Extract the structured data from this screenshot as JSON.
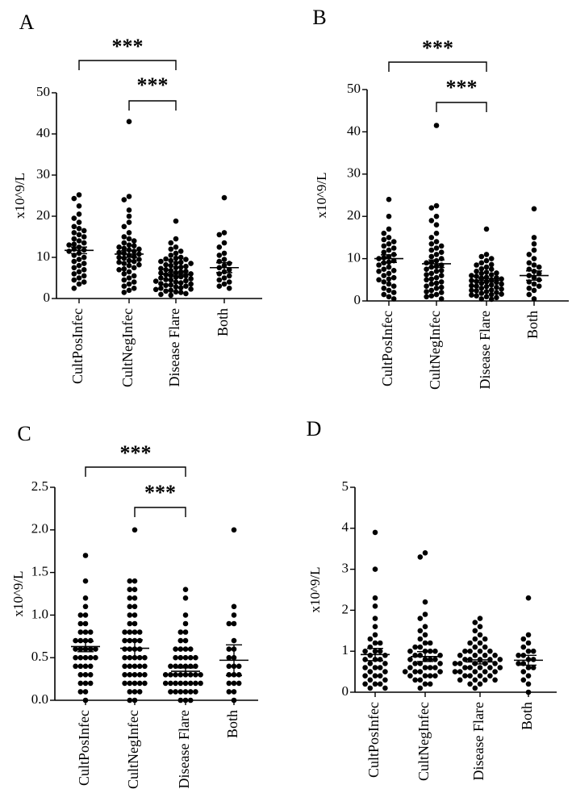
{
  "chart_data": [
    {
      "panel": "A",
      "type": "scatter",
      "ylabel": "x10^9/L",
      "ylim": [
        0,
        50
      ],
      "yticks": [
        0,
        10,
        20,
        30,
        40,
        50
      ],
      "categories": [
        "CultPosInfec",
        "CultNegInfec",
        "Disease Flare",
        "Both"
      ],
      "points": [
        [
          25.2,
          24.3,
          22.5,
          20.5,
          19.5,
          18.5,
          17.5,
          17.0,
          16.5,
          16.0,
          15.5,
          15.0,
          14.5,
          14.0,
          13.5,
          13.2,
          13.0,
          12.5,
          12.0,
          11.8,
          11.5,
          11.0,
          10.5,
          10.0,
          9.5,
          9.0,
          8.5,
          8.0,
          7.5,
          7.0,
          6.5,
          6.0,
          5.5,
          5.0,
          4.5,
          4.0,
          3.5,
          2.5
        ],
        [
          43.0,
          24.8,
          24.0,
          21.5,
          20.0,
          18.5,
          17.5,
          16.0,
          15.0,
          14.5,
          14.0,
          13.5,
          13.0,
          12.8,
          12.5,
          12.2,
          12.0,
          11.8,
          11.5,
          11.2,
          11.0,
          10.8,
          10.5,
          10.2,
          10.0,
          9.8,
          9.5,
          9.2,
          9.0,
          8.8,
          8.5,
          8.2,
          8.0,
          7.5,
          7.2,
          7.0,
          6.5,
          6.0,
          5.5,
          5.0,
          4.5,
          4.0,
          3.5,
          3.0,
          2.5,
          2.0,
          1.5
        ],
        [
          18.8,
          14.5,
          13.5,
          12.5,
          12.0,
          11.5,
          11.0,
          10.5,
          10.0,
          9.8,
          9.5,
          9.2,
          9.0,
          8.8,
          8.5,
          8.2,
          8.0,
          7.8,
          7.5,
          7.3,
          7.0,
          6.8,
          6.5,
          6.3,
          6.0,
          5.8,
          5.5,
          5.3,
          5.0,
          4.8,
          4.5,
          4.3,
          4.0,
          3.8,
          3.5,
          3.3,
          3.0,
          2.8,
          2.5,
          2.3,
          2.0,
          1.8,
          1.5,
          1.2,
          1.0,
          0.8,
          6.2,
          5.6,
          4.6,
          3.6,
          2.6,
          7.6,
          8.6,
          9.6,
          6.6,
          5.2,
          4.2,
          3.2,
          2.2,
          1.6
        ],
        [
          24.5,
          16.0,
          15.5,
          13.5,
          12.5,
          11.0,
          10.5,
          9.5,
          9.0,
          8.5,
          8.0,
          7.5,
          7.0,
          6.5,
          6.0,
          5.5,
          5.0,
          4.5,
          4.0,
          3.5,
          3.0,
          2.5
        ]
      ],
      "mean": [
        11.7,
        10.8,
        5.9,
        7.5
      ],
      "sem": [
        0.8,
        0.8,
        0.4,
        1.2
      ],
      "significance": [
        {
          "from": 0,
          "to": 2,
          "label": "***"
        },
        {
          "from": 1,
          "to": 2,
          "label": "***"
        }
      ]
    },
    {
      "panel": "B",
      "type": "scatter",
      "ylabel": "x10^9/L",
      "ylim": [
        0,
        50
      ],
      "yticks": [
        0,
        10,
        20,
        30,
        40,
        50
      ],
      "categories": [
        "CultPosInfec",
        "CultNegInfec",
        "Disease Flare",
        "Both"
      ],
      "points": [
        [
          24.0,
          20.0,
          17.0,
          16.0,
          15.0,
          14.5,
          14.0,
          13.5,
          13.0,
          12.5,
          12.0,
          11.5,
          11.0,
          10.5,
          10.0,
          9.5,
          9.0,
          8.5,
          8.0,
          7.5,
          7.0,
          6.5,
          6.0,
          5.5,
          5.0,
          4.5,
          4.0,
          3.5,
          3.0,
          2.5,
          2.0,
          1.5,
          1.0,
          0.5,
          10.2,
          9.2,
          7.2,
          5.2
        ],
        [
          41.5,
          22.5,
          22.0,
          20.0,
          19.0,
          18.0,
          16.0,
          15.0,
          14.0,
          13.5,
          13.0,
          12.5,
          12.0,
          11.5,
          11.0,
          10.5,
          10.0,
          9.5,
          9.0,
          8.5,
          8.0,
          7.5,
          7.0,
          6.5,
          6.0,
          5.5,
          5.0,
          4.5,
          4.0,
          3.5,
          3.0,
          2.5,
          2.0,
          1.5,
          1.0,
          0.5,
          9.2,
          8.2,
          7.2,
          6.2,
          5.2,
          4.2,
          3.2,
          2.2,
          1.2
        ],
        [
          17.0,
          11.0,
          10.5,
          10.0,
          9.5,
          9.0,
          8.5,
          8.0,
          7.5,
          7.0,
          6.8,
          6.5,
          6.2,
          6.0,
          5.8,
          5.5,
          5.2,
          5.0,
          4.8,
          4.5,
          4.2,
          4.0,
          3.8,
          3.5,
          3.2,
          3.0,
          2.8,
          2.5,
          2.2,
          2.0,
          1.8,
          1.5,
          1.2,
          1.0,
          0.8,
          0.5,
          6.6,
          5.6,
          4.6,
          3.6,
          2.6,
          1.6,
          7.6,
          8.6,
          5.4,
          4.4,
          3.4,
          2.4,
          1.4,
          0.4
        ],
        [
          21.8,
          15.0,
          13.5,
          12.0,
          11.0,
          10.0,
          9.0,
          8.5,
          8.0,
          7.5,
          7.0,
          6.5,
          6.0,
          5.5,
          5.0,
          4.5,
          4.0,
          3.5,
          3.0,
          2.5,
          1.5,
          0.5
        ]
      ],
      "mean": [
        10.0,
        8.8,
        4.9,
        6.0
      ],
      "sem": [
        0.9,
        0.9,
        0.4,
        1.1
      ],
      "significance": [
        {
          "from": 0,
          "to": 2,
          "label": "***"
        },
        {
          "from": 1,
          "to": 2,
          "label": "***"
        }
      ]
    },
    {
      "panel": "C",
      "type": "scatter",
      "ylabel": "x10^9/L",
      "ylim": [
        0,
        2.5
      ],
      "yticks": [
        "0.0",
        "0.5",
        "1.0",
        "1.5",
        "2.0",
        "2.5"
      ],
      "categories": [
        "CultPosInfec",
        "CultNegInfec",
        "Disease Flare",
        "Both"
      ],
      "points": [
        [
          1.7,
          1.4,
          1.2,
          1.1,
          1.0,
          1.0,
          0.9,
          0.9,
          0.8,
          0.8,
          0.8,
          0.7,
          0.7,
          0.7,
          0.6,
          0.6,
          0.6,
          0.6,
          0.5,
          0.5,
          0.5,
          0.5,
          0.4,
          0.4,
          0.4,
          0.4,
          0.3,
          0.3,
          0.3,
          0.2,
          0.2,
          0.2,
          0.1,
          0.1,
          0.0,
          0.6,
          0.7,
          0.5
        ],
        [
          2.0,
          1.4,
          1.4,
          1.3,
          1.3,
          1.2,
          1.2,
          1.1,
          1.1,
          1.0,
          1.0,
          0.9,
          0.9,
          0.8,
          0.8,
          0.8,
          0.7,
          0.7,
          0.7,
          0.6,
          0.6,
          0.6,
          0.5,
          0.5,
          0.5,
          0.5,
          0.4,
          0.4,
          0.4,
          0.4,
          0.3,
          0.3,
          0.3,
          0.3,
          0.2,
          0.2,
          0.2,
          0.2,
          0.1,
          0.1,
          0.1,
          0.0,
          0.0,
          0.6,
          0.5,
          0.4,
          0.3,
          0.2,
          0.7,
          0.8
        ],
        [
          1.3,
          1.2,
          1.0,
          0.9,
          0.8,
          0.8,
          0.7,
          0.7,
          0.6,
          0.6,
          0.6,
          0.5,
          0.5,
          0.5,
          0.5,
          0.4,
          0.4,
          0.4,
          0.4,
          0.4,
          0.3,
          0.3,
          0.3,
          0.3,
          0.3,
          0.3,
          0.2,
          0.2,
          0.2,
          0.2,
          0.2,
          0.2,
          0.1,
          0.1,
          0.1,
          0.1,
          0.1,
          0.0,
          0.0,
          0.0,
          0.3,
          0.2,
          0.4,
          0.2,
          0.3,
          0.1,
          0.5,
          0.6
        ],
        [
          2.0,
          1.1,
          1.0,
          0.9,
          0.9,
          0.7,
          0.6,
          0.5,
          0.5,
          0.4,
          0.4,
          0.3,
          0.3,
          0.3,
          0.2,
          0.2,
          0.2,
          0.1,
          0.1,
          0.0,
          0.6,
          0.4
        ]
      ],
      "mean": [
        0.63,
        0.61,
        0.34,
        0.47
      ],
      "sem": [
        0.06,
        0.1,
        0.04,
        0.18
      ],
      "significance": [
        {
          "from": 0,
          "to": 2,
          "label": "***"
        },
        {
          "from": 1,
          "to": 2,
          "label": "***"
        }
      ]
    },
    {
      "panel": "D",
      "type": "scatter",
      "ylabel": "x10^9/L",
      "ylim": [
        0,
        5
      ],
      "yticks": [
        0,
        1,
        2,
        3,
        4,
        5
      ],
      "categories": [
        "CultPosInfec",
        "CultNegInfec",
        "Disease Flare",
        "Both"
      ],
      "points": [
        [
          3.9,
          3.0,
          2.3,
          2.1,
          1.8,
          1.6,
          1.4,
          1.3,
          1.2,
          1.1,
          1.0,
          1.0,
          0.9,
          0.9,
          0.8,
          0.8,
          0.7,
          0.7,
          0.6,
          0.6,
          0.5,
          0.5,
          0.4,
          0.4,
          0.3,
          0.3,
          0.2,
          0.2,
          0.1,
          0.1,
          1.2,
          1.0,
          0.8,
          0.6,
          0.4,
          0.2
        ],
        [
          3.4,
          3.3,
          2.2,
          1.9,
          1.8,
          1.6,
          1.5,
          1.4,
          1.3,
          1.2,
          1.2,
          1.1,
          1.1,
          1.0,
          1.0,
          1.0,
          0.9,
          0.9,
          0.9,
          0.8,
          0.8,
          0.8,
          0.7,
          0.7,
          0.7,
          0.6,
          0.6,
          0.6,
          0.5,
          0.5,
          0.5,
          0.5,
          0.4,
          0.4,
          0.4,
          0.3,
          0.3,
          0.2,
          0.2,
          0.1,
          1.0,
          0.8,
          0.6,
          0.4
        ],
        [
          1.8,
          1.7,
          1.6,
          1.5,
          1.4,
          1.3,
          1.3,
          1.2,
          1.2,
          1.1,
          1.1,
          1.0,
          1.0,
          1.0,
          0.9,
          0.9,
          0.9,
          0.8,
          0.8,
          0.8,
          0.8,
          0.7,
          0.7,
          0.7,
          0.7,
          0.6,
          0.6,
          0.6,
          0.6,
          0.5,
          0.5,
          0.5,
          0.5,
          0.4,
          0.4,
          0.4,
          0.3,
          0.3,
          0.3,
          0.2,
          0.2,
          0.1,
          0.9,
          0.7,
          0.5,
          0.6,
          0.8,
          1.0,
          0.4,
          0.3
        ],
        [
          2.3,
          1.4,
          1.3,
          1.2,
          1.1,
          1.0,
          1.0,
          0.9,
          0.9,
          0.8,
          0.8,
          0.7,
          0.7,
          0.6,
          0.6,
          0.5,
          0.4,
          0.3,
          0.2,
          0.0
        ]
      ],
      "mean": [
        0.92,
        0.87,
        0.74,
        0.78
      ],
      "sem": [
        0.15,
        0.12,
        0.05,
        0.12
      ],
      "significance": []
    }
  ]
}
